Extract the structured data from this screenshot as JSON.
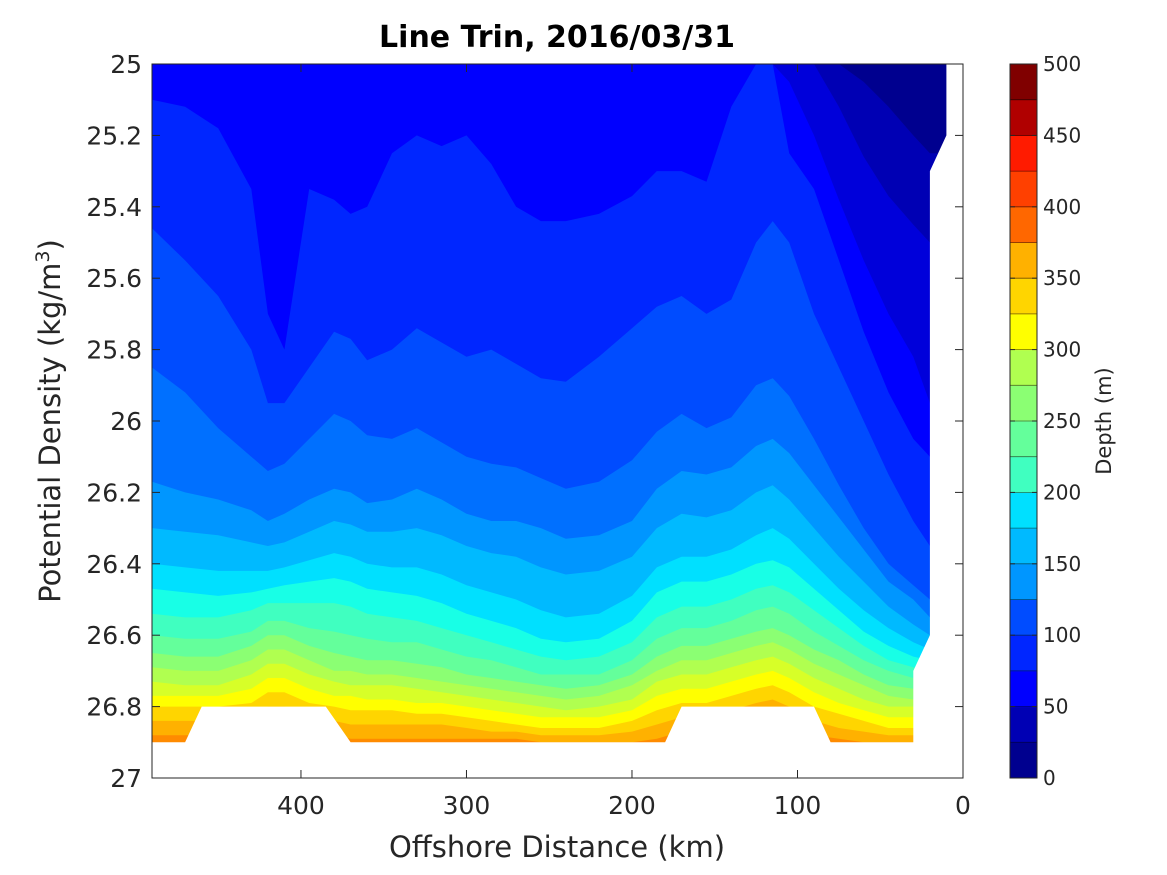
{
  "chart_data": {
    "type": "contourf",
    "title": "Line Trin, 2016/03/31",
    "xlabel": "Offshore Distance (km)",
    "ylabel_main": "Potential Density (kg/m",
    "ylabel_sup": "3",
    "ylabel_close": ")",
    "xlim": [
      490,
      0
    ],
    "x_reversed": true,
    "ylim": [
      25,
      27
    ],
    "y_reversed": true,
    "x_ticks": [
      400,
      300,
      200,
      100,
      0
    ],
    "x_tick_labels": [
      "400",
      "300",
      "200",
      "100",
      "0"
    ],
    "y_ticks": [
      25,
      25.2,
      25.4,
      25.6,
      25.8,
      26,
      26.2,
      26.4,
      26.6,
      26.8,
      27
    ],
    "y_tick_labels": [
      "25",
      "25.2",
      "25.4",
      "25.6",
      "25.8",
      "26",
      "26.2",
      "26.4",
      "26.6",
      "26.8",
      "27"
    ],
    "colorbar": {
      "label": "Depth (m)",
      "range": [
        0,
        500
      ],
      "ticks": [
        0,
        50,
        100,
        150,
        200,
        250,
        300,
        350,
        400,
        450,
        500
      ],
      "tick_labels": [
        "0",
        "50",
        "100",
        "150",
        "200",
        "250",
        "300",
        "350",
        "400",
        "450",
        "500"
      ],
      "colormap": "jet",
      "level_step": 25,
      "colors": [
        "#00008F",
        "#0000B4",
        "#0000DA",
        "#0000FF",
        "#0026FF",
        "#004CFF",
        "#0070FF",
        "#0096FF",
        "#00BAFF",
        "#00E0FF",
        "#18FFE6",
        "#40FFC0",
        "#64FF9B",
        "#8BFF73",
        "#B0FF50",
        "#D7FF28",
        "#FFFF00",
        "#FFD500",
        "#FFB100",
        "#FF8B00",
        "#FF6700",
        "#FF4000",
        "#FF1B00",
        "#F00000",
        "#B00000",
        "#800000"
      ]
    },
    "stations_x": [
      490,
      470,
      450,
      430,
      420,
      410,
      395,
      380,
      370,
      360,
      345,
      330,
      315,
      300,
      285,
      270,
      255,
      240,
      220,
      200,
      185,
      170,
      155,
      140,
      125,
      115,
      105,
      90,
      75,
      60,
      45,
      30,
      20
    ],
    "contour_isolines": [
      {
        "level": 25,
        "y": [
          25.09,
          25.1,
          25.14,
          25.2,
          25.3,
          25.24,
          25.05,
          25.0,
          25.0,
          25.0,
          25.0,
          25.0,
          25.0,
          25.0,
          25.0,
          25.0,
          25.0,
          25.0,
          25.0,
          25.0,
          25.0,
          25.0,
          25.0,
          25.0,
          25.0,
          25.0,
          25.0,
          25.0,
          25.0,
          25.05,
          25.12,
          25.2,
          25.25
        ]
      },
      {
        "level": 50,
        "y": [
          25.0,
          25.0,
          25.0,
          25.0,
          25.0,
          25.0,
          25.0,
          25.0,
          25.0,
          25.0,
          25.0,
          25.0,
          25.0,
          25.0,
          25.0,
          25.0,
          25.0,
          25.0,
          25.0,
          25.0,
          25.0,
          25.0,
          25.0,
          25.0,
          25.0,
          25.0,
          25.0,
          25.0,
          25.12,
          25.26,
          25.37,
          25.45,
          25.5
        ]
      },
      {
        "level": 75,
        "y": [
          25.0,
          25.0,
          25.0,
          25.0,
          25.0,
          25.0,
          25.0,
          25.0,
          25.0,
          25.0,
          25.0,
          25.0,
          25.0,
          25.0,
          25.0,
          25.0,
          25.0,
          25.0,
          25.0,
          25.0,
          25.0,
          25.0,
          25.0,
          25.0,
          25.0,
          25.0,
          25.05,
          25.2,
          25.38,
          25.55,
          25.7,
          25.82,
          25.95
        ]
      },
      {
        "level": 100,
        "y": [
          25.1,
          25.12,
          25.18,
          25.35,
          25.7,
          25.8,
          25.35,
          25.38,
          25.42,
          25.4,
          25.25,
          25.2,
          25.23,
          25.2,
          25.28,
          25.4,
          25.44,
          25.44,
          25.42,
          25.37,
          25.3,
          25.3,
          25.33,
          25.12,
          25.0,
          25.0,
          25.25,
          25.35,
          25.55,
          25.75,
          25.92,
          26.05,
          26.1
        ]
      },
      {
        "level": 125,
        "y": [
          25.46,
          25.55,
          25.65,
          25.8,
          25.95,
          25.95,
          25.85,
          25.75,
          25.77,
          25.83,
          25.8,
          25.74,
          25.78,
          25.82,
          25.8,
          25.84,
          25.88,
          25.89,
          25.82,
          25.74,
          25.68,
          25.65,
          25.7,
          25.66,
          25.5,
          25.44,
          25.5,
          25.7,
          25.85,
          26.0,
          26.15,
          26.28,
          26.35
        ]
      },
      {
        "level": 150,
        "y": [
          25.85,
          25.92,
          26.02,
          26.1,
          26.14,
          26.12,
          26.05,
          25.98,
          26.0,
          26.04,
          26.05,
          26.02,
          26.06,
          26.1,
          26.12,
          26.13,
          26.16,
          26.19,
          26.17,
          26.11,
          26.03,
          25.98,
          26.02,
          25.99,
          25.9,
          25.88,
          25.93,
          26.05,
          26.18,
          26.3,
          26.4,
          26.46,
          26.5
        ]
      },
      {
        "level": 175,
        "y": [
          26.17,
          26.2,
          26.22,
          26.25,
          26.28,
          26.26,
          26.22,
          26.19,
          26.2,
          26.23,
          26.22,
          26.19,
          26.22,
          26.26,
          26.28,
          26.28,
          26.3,
          26.33,
          26.32,
          26.28,
          26.19,
          26.14,
          26.15,
          26.13,
          26.07,
          26.05,
          26.09,
          26.18,
          26.27,
          26.36,
          26.45,
          26.5,
          26.55
        ]
      },
      {
        "level": 200,
        "y": [
          26.3,
          26.31,
          26.32,
          26.34,
          26.35,
          26.34,
          26.31,
          26.28,
          26.29,
          26.31,
          26.31,
          26.3,
          26.32,
          26.35,
          26.37,
          26.38,
          26.41,
          26.43,
          26.42,
          26.38,
          26.3,
          26.26,
          26.27,
          26.25,
          26.2,
          26.18,
          26.22,
          26.3,
          26.38,
          26.45,
          26.52,
          26.57,
          26.6
        ]
      },
      {
        "level": 225,
        "y": [
          26.4,
          26.41,
          26.42,
          26.42,
          26.42,
          26.41,
          26.39,
          26.37,
          26.38,
          26.4,
          26.41,
          26.41,
          26.43,
          26.46,
          26.48,
          26.5,
          26.53,
          26.55,
          26.54,
          26.49,
          26.41,
          26.38,
          26.38,
          26.36,
          26.32,
          26.3,
          26.33,
          26.4,
          26.47,
          26.53,
          26.58,
          26.62,
          26.64
        ]
      },
      {
        "level": 250,
        "y": [
          26.47,
          26.48,
          26.49,
          26.48,
          26.47,
          26.46,
          26.45,
          26.44,
          26.45,
          26.47,
          26.48,
          26.49,
          26.51,
          26.54,
          26.56,
          26.58,
          26.61,
          26.62,
          26.61,
          26.56,
          26.48,
          26.45,
          26.45,
          26.43,
          26.4,
          26.39,
          26.41,
          26.47,
          26.53,
          26.59,
          26.63,
          26.66,
          26.67
        ]
      },
      {
        "level": 275,
        "y": [
          26.54,
          26.55,
          26.55,
          26.53,
          26.51,
          26.51,
          26.51,
          26.51,
          26.52,
          26.54,
          26.55,
          26.56,
          26.58,
          26.6,
          26.62,
          26.64,
          26.66,
          26.67,
          26.66,
          26.62,
          26.55,
          26.52,
          26.52,
          26.5,
          26.47,
          26.46,
          26.48,
          26.53,
          26.58,
          26.63,
          26.67,
          26.69,
          26.7
        ]
      },
      {
        "level": 300,
        "y": [
          26.6,
          26.61,
          26.61,
          26.59,
          26.56,
          26.56,
          26.58,
          26.59,
          26.6,
          26.61,
          26.62,
          26.62,
          26.64,
          26.66,
          26.67,
          26.69,
          26.71,
          26.71,
          26.71,
          26.67,
          26.61,
          26.58,
          26.58,
          26.56,
          26.53,
          26.52,
          26.54,
          26.59,
          26.63,
          26.67,
          26.7,
          26.72,
          26.73
        ]
      },
      {
        "level": 325,
        "y": [
          26.65,
          26.66,
          26.66,
          26.63,
          26.6,
          26.6,
          26.63,
          26.65,
          26.66,
          26.67,
          26.67,
          26.68,
          26.69,
          26.71,
          26.72,
          26.73,
          26.74,
          26.75,
          26.74,
          26.71,
          26.66,
          26.63,
          26.63,
          26.61,
          26.59,
          26.58,
          26.6,
          26.64,
          26.67,
          26.71,
          26.74,
          26.75,
          26.76
        ]
      },
      {
        "level": 350,
        "y": [
          26.69,
          26.7,
          26.7,
          26.67,
          26.64,
          26.64,
          26.67,
          26.7,
          26.7,
          26.71,
          26.71,
          26.72,
          26.73,
          26.74,
          26.75,
          26.76,
          26.77,
          26.78,
          26.77,
          26.74,
          26.7,
          26.67,
          26.67,
          26.65,
          26.63,
          26.62,
          26.64,
          26.68,
          26.71,
          26.74,
          26.77,
          26.78,
          26.79
        ]
      },
      {
        "level": 375,
        "y": [
          26.73,
          26.74,
          26.74,
          26.71,
          26.68,
          26.68,
          26.71,
          26.73,
          26.74,
          26.74,
          26.74,
          26.75,
          26.76,
          26.77,
          26.78,
          26.79,
          26.8,
          26.81,
          26.8,
          26.78,
          26.73,
          26.71,
          26.71,
          26.69,
          26.67,
          26.66,
          26.68,
          26.72,
          26.75,
          26.78,
          26.8,
          26.8,
          26.8
        ]
      },
      {
        "level": 400,
        "y": [
          26.77,
          26.77,
          26.77,
          26.75,
          26.72,
          26.72,
          26.75,
          26.77,
          26.77,
          26.78,
          26.78,
          26.79,
          26.79,
          26.8,
          26.81,
          26.82,
          26.83,
          26.83,
          26.83,
          26.81,
          26.77,
          26.75,
          26.75,
          26.73,
          26.71,
          26.7,
          26.72,
          26.76,
          26.79,
          26.81,
          26.83,
          26.83,
          26.83
        ]
      },
      {
        "level": 425,
        "y": [
          26.8,
          26.8,
          26.8,
          26.79,
          26.76,
          26.76,
          26.79,
          26.8,
          26.81,
          26.81,
          26.81,
          26.82,
          26.82,
          26.83,
          26.84,
          26.85,
          26.86,
          26.86,
          26.86,
          26.84,
          26.81,
          26.79,
          26.79,
          26.77,
          26.75,
          26.74,
          26.76,
          26.8,
          26.82,
          26.84,
          26.86,
          26.86,
          26.86
        ]
      },
      {
        "level": 450,
        "y": [
          26.84,
          26.84,
          26.84,
          26.83,
          26.8,
          26.8,
          26.83,
          26.84,
          26.85,
          26.85,
          26.85,
          26.85,
          26.85,
          26.86,
          26.87,
          26.87,
          26.88,
          26.88,
          26.88,
          26.87,
          26.85,
          26.83,
          26.83,
          26.81,
          26.79,
          26.78,
          26.8,
          26.84,
          26.86,
          26.87,
          26.88,
          26.88,
          26.88
        ]
      },
      {
        "level": 475,
        "y": [
          26.88,
          26.88,
          26.88,
          26.87,
          26.84,
          26.84,
          26.87,
          26.88,
          26.89,
          26.89,
          26.89,
          26.89,
          26.89,
          26.89,
          26.89,
          26.89,
          26.9,
          26.9,
          26.9,
          26.9,
          26.89,
          26.87,
          26.87,
          26.85,
          26.83,
          26.82,
          26.84,
          26.88,
          26.89,
          26.9,
          26.9,
          26.9,
          26.9
        ]
      }
    ],
    "bottom_boundary": [
      [
        490,
        26.9
      ],
      [
        470,
        26.9
      ],
      [
        460,
        26.8
      ],
      [
        385,
        26.8
      ],
      [
        370,
        26.9
      ],
      [
        180,
        26.9
      ],
      [
        170,
        26.8
      ],
      [
        90,
        26.8
      ],
      [
        80,
        26.9
      ],
      [
        30,
        26.9
      ],
      [
        30,
        26.7
      ],
      [
        20,
        26.6
      ],
      [
        20,
        25.3
      ],
      [
        10,
        25.2
      ],
      [
        10,
        25.0
      ]
    ]
  }
}
